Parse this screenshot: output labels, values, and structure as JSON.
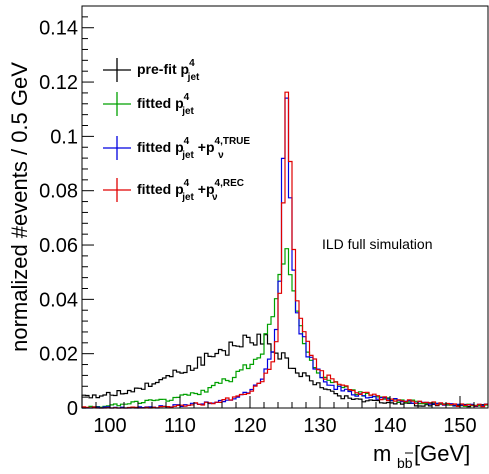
{
  "chart_data": {
    "type": "line",
    "style": "step-histogram",
    "xlabel_main": "m",
    "xlabel_sub": "bb",
    "xlabel_unit": " [GeV]",
    "ylabel": "normalized #events / 0.5 GeV",
    "xlim": [
      96,
      154
    ],
    "ylim": [
      0,
      0.148
    ],
    "bin_width": 0.5,
    "x_ticks": [
      100,
      110,
      120,
      130,
      140,
      150
    ],
    "y_ticks": [
      0,
      0.02,
      0.04,
      0.06,
      0.08,
      0.1,
      0.12,
      0.14
    ],
    "y_tick_labels": [
      "0",
      "0.02",
      "0.04",
      "0.06",
      "0.08",
      "0.1",
      "0.12",
      "0.14"
    ],
    "annotation": "ILD full simulation",
    "grid": false,
    "legend_position": "top-left",
    "series": [
      {
        "legend": {
          "pre": "pre-fit  p",
          "sup": "4",
          "sub": "jet"
        },
        "color": "#000000",
        "points": [
          [
            96,
            0.004
          ],
          [
            100,
            0.005
          ],
          [
            104,
            0.007
          ],
          [
            108,
            0.011
          ],
          [
            112,
            0.016
          ],
          [
            115,
            0.02
          ],
          [
            118,
            0.023
          ],
          [
            120,
            0.025
          ],
          [
            121,
            0.026
          ],
          [
            122,
            0.025
          ],
          [
            123,
            0.023
          ],
          [
            124,
            0.021
          ],
          [
            125,
            0.018
          ],
          [
            126,
            0.016
          ],
          [
            127,
            0.013
          ],
          [
            128,
            0.011
          ],
          [
            130,
            0.008
          ],
          [
            132,
            0.005
          ],
          [
            135,
            0.003
          ],
          [
            140,
            0.002
          ],
          [
            145,
            0.001
          ],
          [
            150,
            0.001
          ],
          [
            154,
            0.001
          ]
        ]
      },
      {
        "legend": {
          "pre": "fitted  p",
          "sup": "4",
          "sub": "jet"
        },
        "color": "#00a000",
        "points": [
          [
            96,
            0.0
          ],
          [
            100,
            0.001
          ],
          [
            104,
            0.002
          ],
          [
            108,
            0.003
          ],
          [
            112,
            0.005
          ],
          [
            115,
            0.008
          ],
          [
            118,
            0.012
          ],
          [
            120,
            0.016
          ],
          [
            121,
            0.019
          ],
          [
            122,
            0.023
          ],
          [
            123,
            0.03
          ],
          [
            124,
            0.042
          ],
          [
            125,
            0.062
          ],
          [
            126,
            0.044
          ],
          [
            127,
            0.032
          ],
          [
            128,
            0.023
          ],
          [
            129,
            0.017
          ],
          [
            130,
            0.013
          ],
          [
            132,
            0.009
          ],
          [
            135,
            0.006
          ],
          [
            140,
            0.003
          ],
          [
            145,
            0.002
          ],
          [
            150,
            0.001
          ],
          [
            154,
            0.001
          ]
        ]
      },
      {
        "legend": {
          "pre": "fitted  p",
          "sup": "4",
          "sub": "jet",
          "mid": " +p",
          "sup2": "4,TRUE",
          "sub2": "ν"
        },
        "color": "#0000e0",
        "points": [
          [
            96,
            0.0
          ],
          [
            105,
            0.0
          ],
          [
            110,
            0.001
          ],
          [
            115,
            0.002
          ],
          [
            118,
            0.004
          ],
          [
            120,
            0.006
          ],
          [
            121,
            0.008
          ],
          [
            122,
            0.012
          ],
          [
            123,
            0.018
          ],
          [
            124,
            0.032
          ],
          [
            124.5,
            0.06
          ],
          [
            125,
            0.124
          ],
          [
            125.5,
            0.1
          ],
          [
            126,
            0.06
          ],
          [
            126.5,
            0.04
          ],
          [
            127,
            0.03
          ],
          [
            128,
            0.022
          ],
          [
            129,
            0.016
          ],
          [
            130,
            0.012
          ],
          [
            132,
            0.008
          ],
          [
            135,
            0.005
          ],
          [
            140,
            0.003
          ],
          [
            145,
            0.002
          ],
          [
            150,
            0.001
          ],
          [
            154,
            0.001
          ]
        ]
      },
      {
        "legend": {
          "pre": "fitted  p",
          "sup": "4",
          "sub": "jet",
          "mid": " +p",
          "sup2": "4,REC",
          "sub2": "ν"
        },
        "color": "#e00000",
        "points": [
          [
            96,
            0.0
          ],
          [
            105,
            0.0
          ],
          [
            110,
            0.001
          ],
          [
            115,
            0.002
          ],
          [
            118,
            0.004
          ],
          [
            120,
            0.006
          ],
          [
            121,
            0.008
          ],
          [
            122,
            0.011
          ],
          [
            123,
            0.016
          ],
          [
            124,
            0.028
          ],
          [
            124.5,
            0.05
          ],
          [
            125,
            0.115
          ],
          [
            125.5,
            0.108
          ],
          [
            126,
            0.068
          ],
          [
            126.5,
            0.046
          ],
          [
            127,
            0.034
          ],
          [
            128,
            0.025
          ],
          [
            129,
            0.018
          ],
          [
            130,
            0.014
          ],
          [
            132,
            0.009
          ],
          [
            135,
            0.006
          ],
          [
            140,
            0.003
          ],
          [
            145,
            0.002
          ],
          [
            150,
            0.001
          ],
          [
            154,
            0.001
          ]
        ]
      }
    ]
  }
}
